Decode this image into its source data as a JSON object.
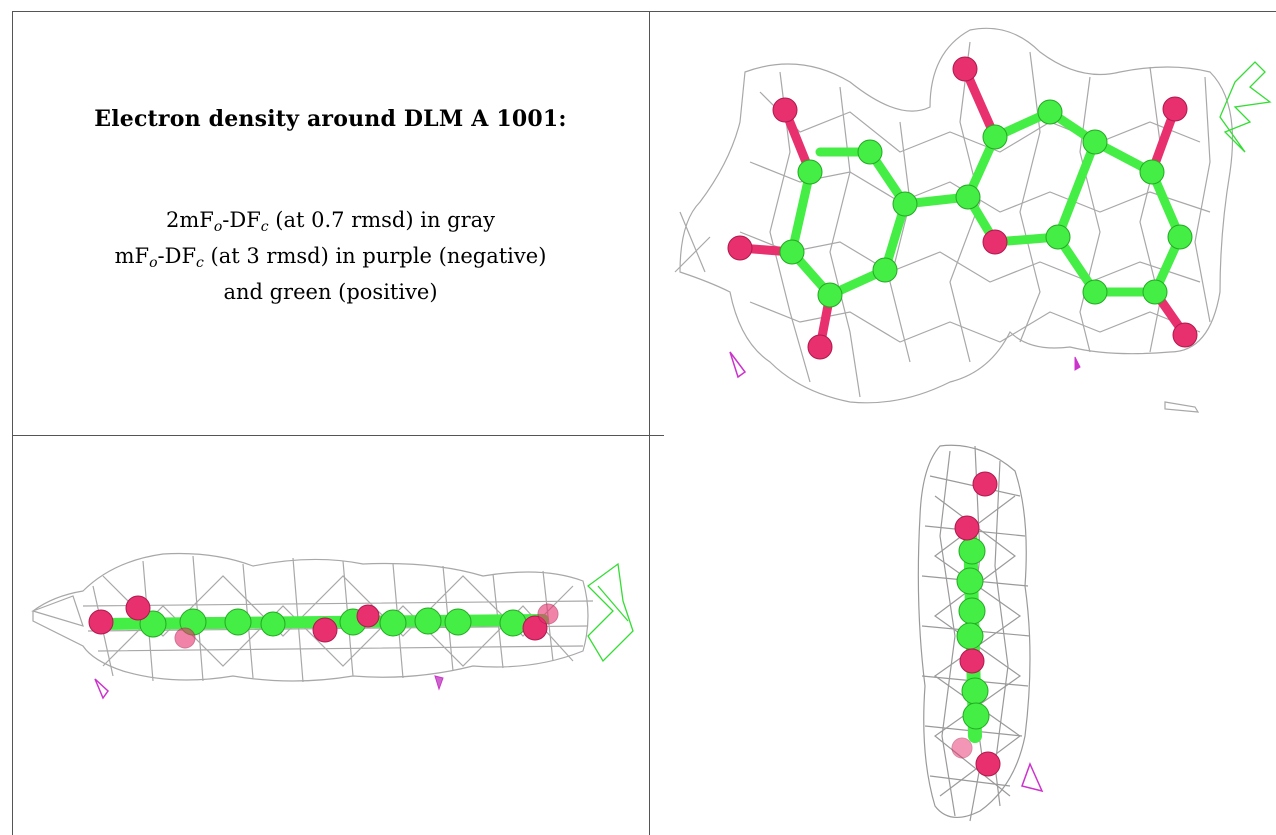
{
  "caption": {
    "title": "Electron density around DLM A 1001:",
    "line1_a": "2mF",
    "line1_sub1": "o",
    "line1_b": "-DF",
    "line1_sub2": "c",
    "line1_c": " (at 0.7 rmsd) in gray",
    "line2_a": "mF",
    "line2_sub1": "o",
    "line2_b": "-DF",
    "line2_sub2": "c",
    "line2_c": " (at 3 rmsd) in purple (negative)",
    "line3": "and green (positive)"
  },
  "colors": {
    "mesh_2fofc": "#9a9a9a",
    "mesh_fofc_negative": "#cc33cc",
    "mesh_fofc_positive": "#33dd33",
    "carbon_atom": "#44ee44",
    "oxygen_atom": "#e8306f",
    "border": "#555555"
  }
}
